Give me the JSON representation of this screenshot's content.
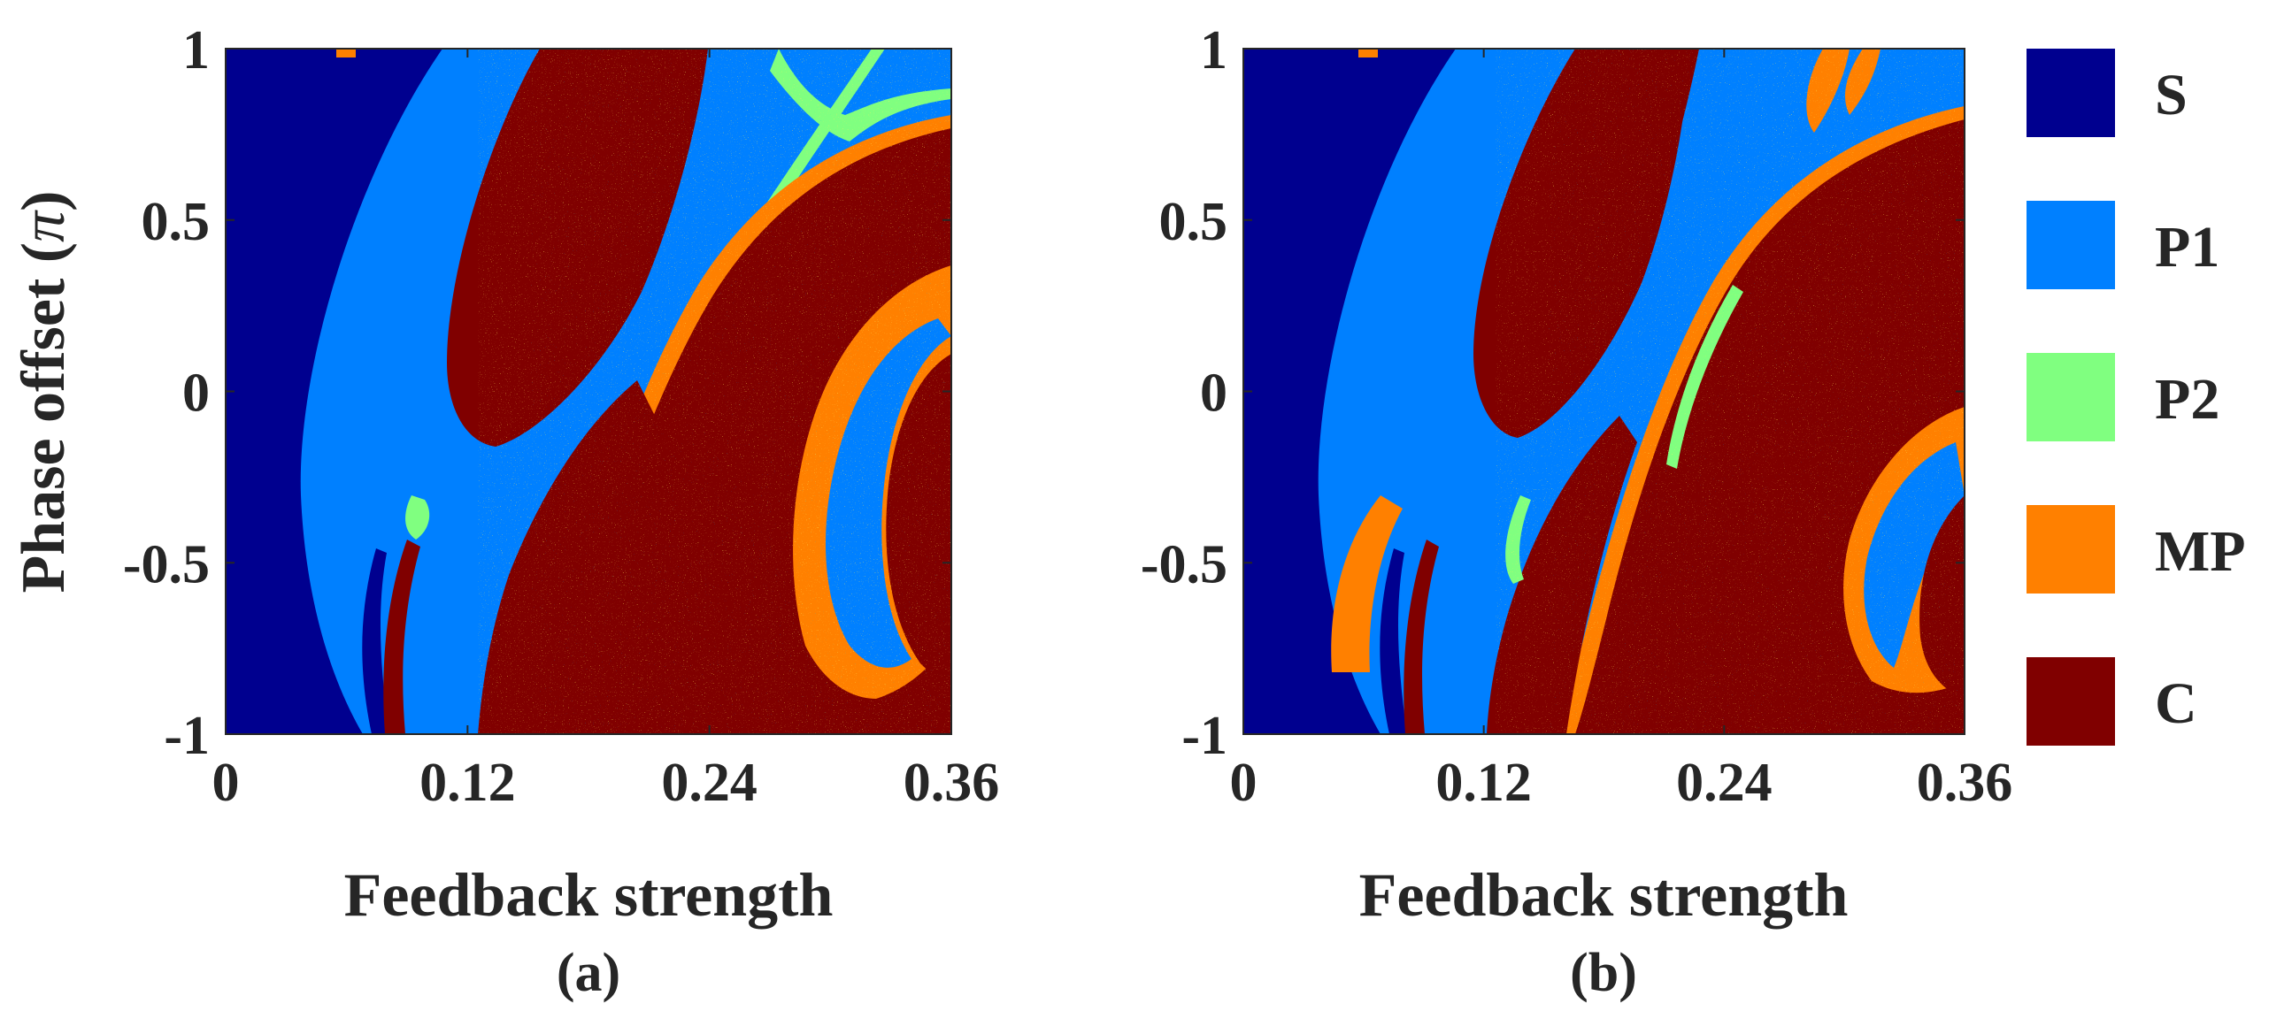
{
  "figure": {
    "panels": [
      "(a)",
      "(b)"
    ]
  },
  "chart_data": [
    {
      "type": "heatmap",
      "panel_label": "(a)",
      "title": "",
      "xlabel": "Feedback strength",
      "ylabel": "Phase offset (π)",
      "ylabel_parts": {
        "text": "Phase offset (",
        "symbol": "π",
        "close": ")"
      },
      "xlim": [
        0,
        0.36
      ],
      "ylim": [
        -1,
        1
      ],
      "xticks": [
        0,
        0.12,
        0.24,
        0.36
      ],
      "xtick_labels": [
        "0",
        "0.12",
        "0.24",
        "0.36"
      ],
      "yticks": [
        1,
        0.5,
        0,
        -0.5,
        -1
      ],
      "ytick_labels": [
        "1",
        "0.5",
        "0",
        "-0.5",
        "-1"
      ],
      "regions": [
        {
          "state": "S",
          "description": "stable region for feedback strength below ~0.04–0.09 (curved boundary)"
        },
        {
          "state": "P1",
          "description": "wide band along boundary and diagonal channel"
        },
        {
          "state": "P2",
          "description": "thin edges and feature near x≈0.28, y≈0.9"
        },
        {
          "state": "MP",
          "description": "borders of chaotic lobes"
        },
        {
          "state": "C",
          "description": "large diagonal chaotic lobes"
        }
      ]
    },
    {
      "type": "heatmap",
      "panel_label": "(b)",
      "title": "",
      "xlabel": "Feedback strength",
      "ylabel": "",
      "xlim": [
        0,
        0.36
      ],
      "ylim": [
        -1,
        1
      ],
      "xticks": [
        0,
        0.12,
        0.24,
        0.36
      ],
      "xtick_labels": [
        "0",
        "0.12",
        "0.24",
        "0.36"
      ],
      "yticks": [
        1,
        0.5,
        0,
        -0.5,
        -1
      ],
      "ytick_labels": [
        "1",
        "0.5",
        "0",
        "-0.5",
        "-1"
      ],
      "regions": [
        {
          "state": "S",
          "description": "stable region at low feedback strength"
        },
        {
          "state": "P1",
          "description": "bands between chaotic lobes"
        },
        {
          "state": "P2",
          "description": "narrow diagonal streaks"
        },
        {
          "state": "MP",
          "description": "lobe borders and spikes near top"
        },
        {
          "state": "C",
          "description": "diagonal chaotic lobes"
        }
      ]
    }
  ],
  "legend": {
    "placement": "right",
    "items": [
      {
        "label": "S",
        "color": "#00008f"
      },
      {
        "label": "P1",
        "color": "#0080ff"
      },
      {
        "label": "P2",
        "color": "#80ff80"
      },
      {
        "label": "MP",
        "color": "#ff8000"
      },
      {
        "label": "C",
        "color": "#800000"
      }
    ]
  },
  "colors": {
    "S": "#00008f",
    "P1": "#0080ff",
    "P2": "#80ff80",
    "MP": "#ff8000",
    "C": "#800000",
    "noise_yellow": "#ffff30",
    "text": "#262626"
  }
}
